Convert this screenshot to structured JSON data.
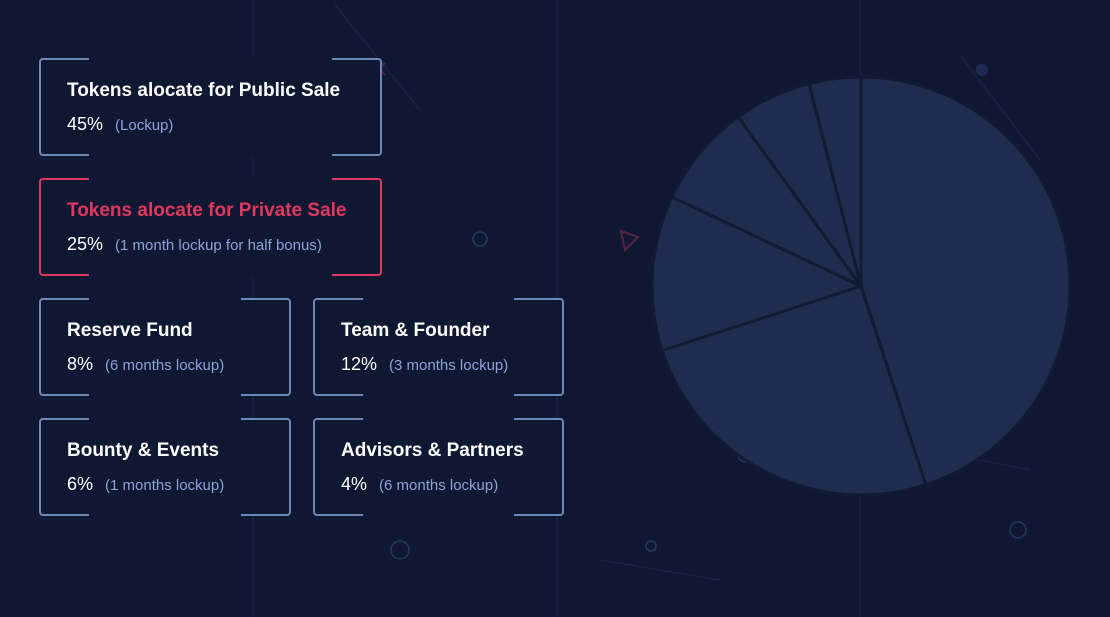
{
  "cards": [
    {
      "title": "Tokens alocate for Public Sale",
      "percent": "45%",
      "note": "(Lockup)"
    },
    {
      "title": "Tokens alocate for Private Sale",
      "percent": "25%",
      "note": "(1 month lockup for half bonus)"
    },
    {
      "title": "Reserve Fund",
      "percent": "8%",
      "note": "(6 months lockup)"
    },
    {
      "title": "Team & Founder",
      "percent": "12%",
      "note": "(3 months lockup)"
    },
    {
      "title": "Bounty & Events",
      "percent": "6%",
      "note": "(1 months lockup)"
    },
    {
      "title": "Advisors & Partners",
      "percent": "4%",
      "note": "(6 months lockup)"
    }
  ],
  "colors": {
    "background": "#0f1833",
    "card_border": "#6f86b8",
    "highlight": "#e0385d",
    "note_text": "#8ea2d6",
    "pie_fill": "#1f2c4d",
    "pie_separator": "#111a33"
  },
  "chart_data": {
    "type": "pie",
    "title": "",
    "categories": [
      "Tokens alocate for Public Sale",
      "Tokens alocate for Private Sale",
      "Team & Founder",
      "Reserve Fund",
      "Bounty & Events",
      "Advisors & Partners"
    ],
    "values": [
      45,
      25,
      12,
      8,
      6,
      4
    ],
    "start_angle_deg": 0,
    "direction": "clockwise",
    "legend": "cards-left"
  }
}
